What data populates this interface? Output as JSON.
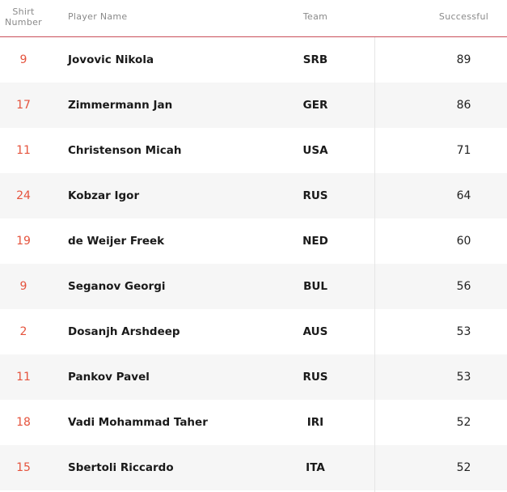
{
  "table": {
    "columns": [
      "Shirt Number",
      "Player Name",
      "Team",
      "Successful"
    ],
    "rows": [
      [
        9,
        "Jovovic Nikola",
        "SRB",
        89
      ],
      [
        17,
        "Zimmermann Jan",
        "GER",
        86
      ],
      [
        11,
        "Christenson Micah",
        "USA",
        71
      ],
      [
        24,
        "Kobzar Igor",
        "RUS",
        64
      ],
      [
        19,
        "de Weijer Freek",
        "NED",
        60
      ],
      [
        9,
        "Seganov Georgi",
        "BUL",
        56
      ],
      [
        2,
        "Dosanjh Arshdeep",
        "AUS",
        53
      ],
      [
        11,
        "Pankov Pavel",
        "RUS",
        53
      ],
      [
        18,
        "Vadi Mohammad Taher",
        "IRI",
        52
      ],
      [
        15,
        "Sbertoli Riccardo",
        "ITA",
        52
      ]
    ]
  }
}
